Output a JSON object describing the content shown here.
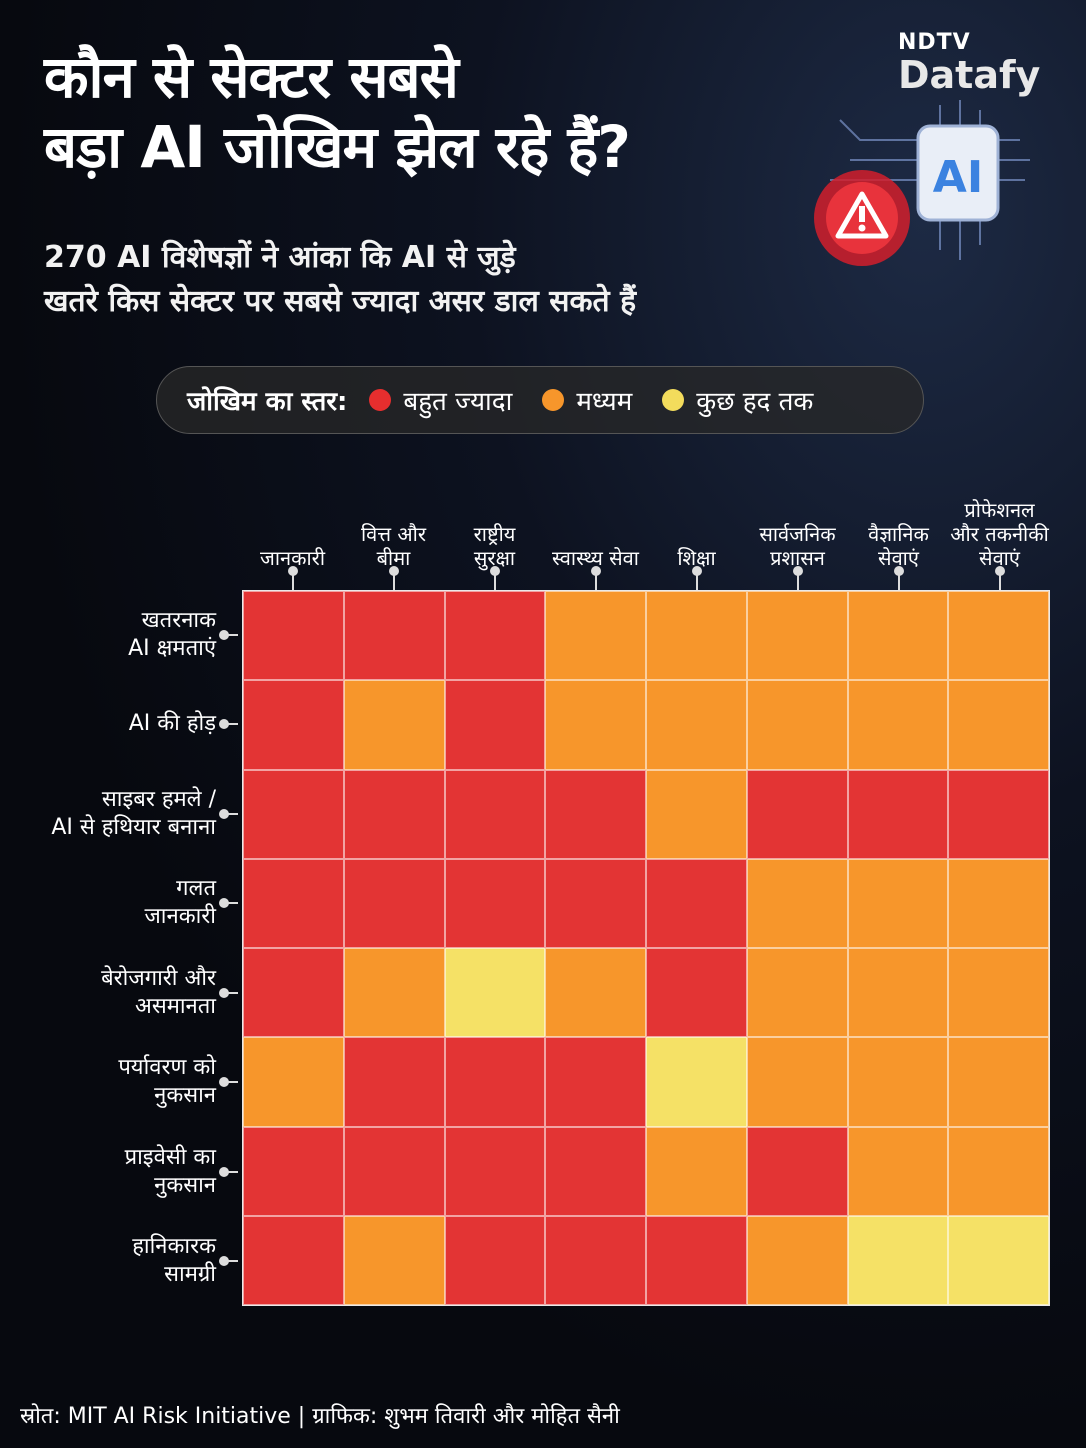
{
  "header": {
    "title_line1": "कौन से सेक्टर सबसे",
    "title_line2": "बड़ा AI जोखिम झेल रहे हैं?",
    "subtitle_line1": "270 AI विशेषज्ञों ने आंका कि AI से जुड़े",
    "subtitle_line2": "खतरे किस सेक्टर पर सबसे ज्यादा असर डाल सकते हैं"
  },
  "brand": {
    "top": "NDTV",
    "bottom": "Datafy"
  },
  "legend": {
    "title": "जोखिम का स्तर:",
    "items": [
      {
        "label": "बहुत ज्यादा",
        "color": "#e62e2e"
      },
      {
        "label": "मध्यम",
        "color": "#f7962b"
      },
      {
        "label": "कुछ हद तक",
        "color": "#f3dc5c"
      }
    ]
  },
  "chart_data": {
    "type": "heatmap",
    "columns": [
      {
        "line1": "जानकारी",
        "line2": ""
      },
      {
        "line1": "वित्त और",
        "line2": "बीमा"
      },
      {
        "line1": "राष्ट्रीय",
        "line2": "सुरक्षा"
      },
      {
        "line1": "स्वास्थ्य सेवा",
        "line2": ""
      },
      {
        "line1": "शिक्षा",
        "line2": ""
      },
      {
        "line1": "सार्वजनिक",
        "line2": "प्रशासन"
      },
      {
        "line1": "वैज्ञानिक",
        "line2": "सेवाएं"
      },
      {
        "line1": "प्रोफेशनल",
        "line2": "और तकनीकी",
        "line3": "सेवाएं"
      }
    ],
    "rows": [
      {
        "line1": "खतरनाक",
        "line2": "AI क्षमताएं"
      },
      {
        "line1": "AI की होड़",
        "line2": ""
      },
      {
        "line1": "साइबर हमले /",
        "line2": "AI से हथियार बनाना"
      },
      {
        "line1": "गलत",
        "line2": "जानकारी"
      },
      {
        "line1": "बेरोजगारी और",
        "line2": "असमानता"
      },
      {
        "line1": "पर्यावरण को",
        "line2": "नुकसान"
      },
      {
        "line1": "प्राइवेसी का",
        "line2": "नुकसान"
      },
      {
        "line1": "हानिकारक",
        "line2": "सामग्री"
      }
    ],
    "levels": {
      "H": "बहुत ज्यादा",
      "M": "मध्यम",
      "L": "कुछ हद तक"
    },
    "colors": {
      "H": "#e33434",
      "M": "#f7962b",
      "L": "#f5e166"
    },
    "values": [
      [
        "H",
        "H",
        "H",
        "M",
        "M",
        "M",
        "M",
        "M"
      ],
      [
        "H",
        "M",
        "H",
        "M",
        "M",
        "M",
        "M",
        "M"
      ],
      [
        "H",
        "H",
        "H",
        "H",
        "M",
        "H",
        "H",
        "H"
      ],
      [
        "H",
        "H",
        "H",
        "H",
        "H",
        "M",
        "M",
        "M"
      ],
      [
        "H",
        "M",
        "L",
        "M",
        "H",
        "M",
        "M",
        "M"
      ],
      [
        "M",
        "H",
        "H",
        "H",
        "L",
        "M",
        "M",
        "M"
      ],
      [
        "H",
        "H",
        "H",
        "H",
        "M",
        "H",
        "M",
        "M"
      ],
      [
        "H",
        "M",
        "H",
        "H",
        "H",
        "M",
        "L",
        "L"
      ]
    ]
  },
  "source": "स्रोत: MIT AI Risk Initiative  |  ग्राफिक: शुभम तिवारी और मोहित सैनी"
}
